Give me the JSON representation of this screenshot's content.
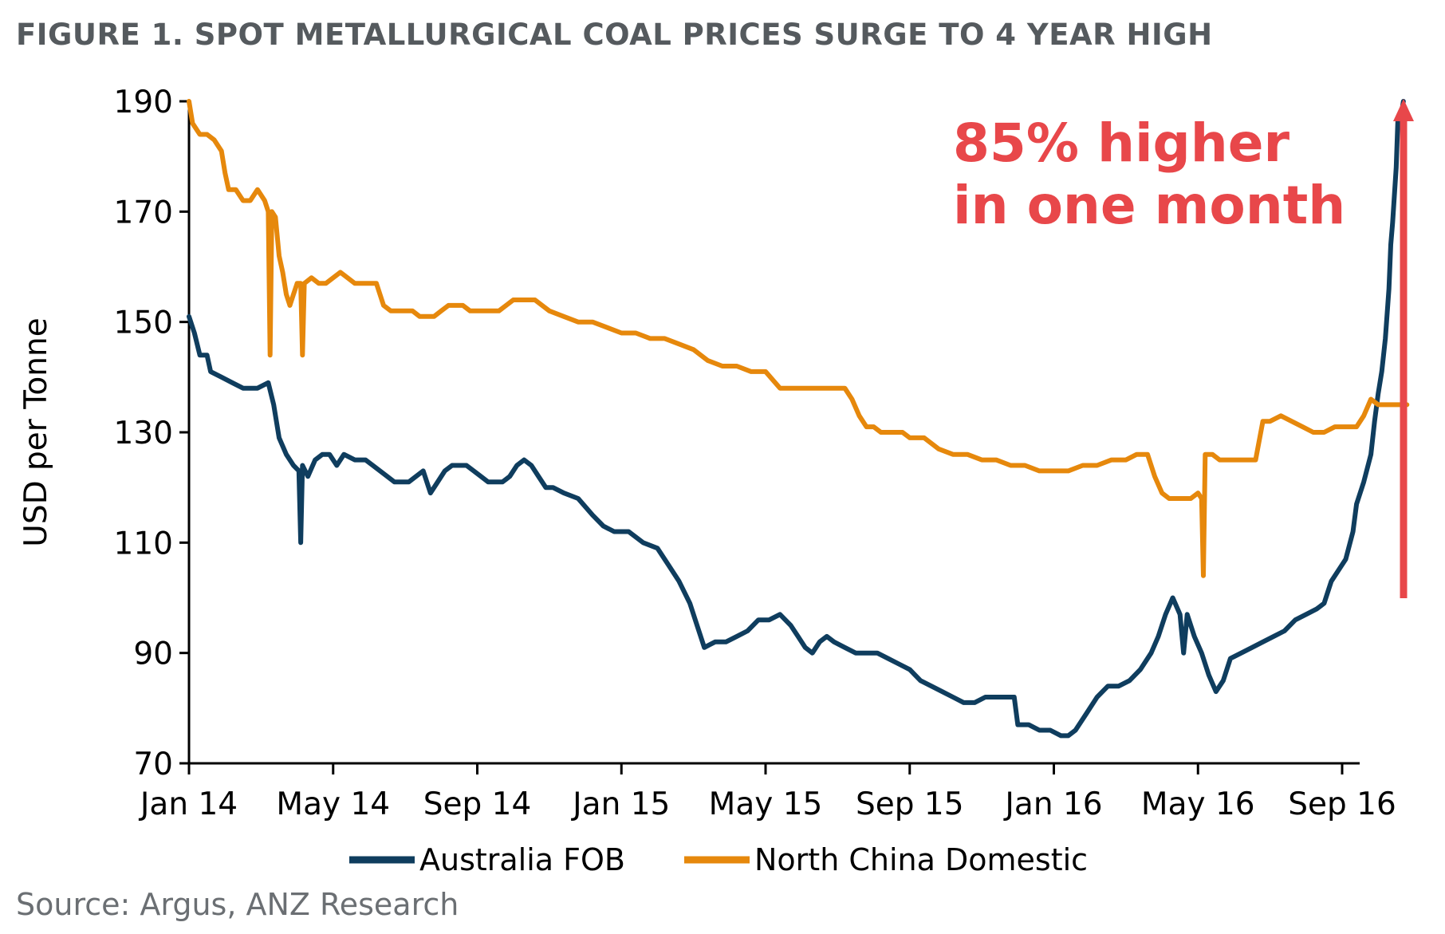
{
  "header": {
    "title": "FIGURE 1. SPOT METALLURGICAL COAL PRICES SURGE TO 4 YEAR HIGH"
  },
  "footer": {
    "source": "Source: Argus, ANZ Research"
  },
  "annotation": {
    "line1": "85% higher",
    "line2": "in one month",
    "color": "#e8474a"
  },
  "chart_data": {
    "type": "line",
    "title": "FIGURE 1. SPOT METALLURGICAL COAL PRICES SURGE TO 4 YEAR HIGH",
    "xlabel": "",
    "ylabel": "USD per Tonne",
    "ylim": [
      70,
      190
    ],
    "yticks": [
      70,
      90,
      110,
      130,
      150,
      170,
      190
    ],
    "xticks": [
      "Jan 14",
      "May 14",
      "Sep 14",
      "Jan 15",
      "May 15",
      "Sep 15",
      "Jan 16",
      "May 16",
      "Sep 16"
    ],
    "x_unit": "months since Jan 2014",
    "grid": false,
    "legend": "bottom",
    "series": [
      {
        "name": "Australia FOB",
        "color": "#0f3d5e",
        "points": [
          [
            0,
            151
          ],
          [
            0.15,
            148
          ],
          [
            0.3,
            144
          ],
          [
            0.5,
            144
          ],
          [
            0.6,
            141
          ],
          [
            0.9,
            140
          ],
          [
            1.2,
            139
          ],
          [
            1.5,
            138
          ],
          [
            1.9,
            138
          ],
          [
            2.2,
            139
          ],
          [
            2.35,
            135
          ],
          [
            2.5,
            129
          ],
          [
            2.7,
            126
          ],
          [
            2.9,
            124
          ],
          [
            3.05,
            123
          ],
          [
            3.1,
            110
          ],
          [
            3.15,
            124
          ],
          [
            3.3,
            122
          ],
          [
            3.5,
            125
          ],
          [
            3.7,
            126
          ],
          [
            3.9,
            126
          ],
          [
            4.1,
            124
          ],
          [
            4.3,
            126
          ],
          [
            4.6,
            125
          ],
          [
            4.9,
            125
          ],
          [
            5.1,
            124
          ],
          [
            5.3,
            123
          ],
          [
            5.5,
            122
          ],
          [
            5.7,
            121
          ],
          [
            5.9,
            121
          ],
          [
            6.1,
            121
          ],
          [
            6.3,
            122
          ],
          [
            6.5,
            123
          ],
          [
            6.7,
            119
          ],
          [
            6.9,
            121
          ],
          [
            7.1,
            123
          ],
          [
            7.3,
            124
          ],
          [
            7.5,
            124
          ],
          [
            7.7,
            124
          ],
          [
            7.9,
            123
          ],
          [
            8.1,
            122
          ],
          [
            8.3,
            121
          ],
          [
            8.5,
            121
          ],
          [
            8.7,
            121
          ],
          [
            8.9,
            122
          ],
          [
            9.1,
            124
          ],
          [
            9.3,
            125
          ],
          [
            9.5,
            124
          ],
          [
            9.7,
            122
          ],
          [
            9.9,
            120
          ],
          [
            10.1,
            120
          ],
          [
            10.4,
            119
          ],
          [
            10.8,
            118
          ],
          [
            11.2,
            115
          ],
          [
            11.5,
            113
          ],
          [
            11.8,
            112
          ],
          [
            12.2,
            112
          ],
          [
            12.6,
            110
          ],
          [
            13.0,
            109
          ],
          [
            13.3,
            106
          ],
          [
            13.6,
            103
          ],
          [
            13.9,
            99
          ],
          [
            14.1,
            95
          ],
          [
            14.3,
            91
          ],
          [
            14.6,
            92
          ],
          [
            14.9,
            92
          ],
          [
            15.2,
            93
          ],
          [
            15.5,
            94
          ],
          [
            15.8,
            96
          ],
          [
            16.1,
            96
          ],
          [
            16.4,
            97
          ],
          [
            16.7,
            95
          ],
          [
            16.9,
            93
          ],
          [
            17.1,
            91
          ],
          [
            17.3,
            90
          ],
          [
            17.5,
            92
          ],
          [
            17.7,
            93
          ],
          [
            17.9,
            92
          ],
          [
            18.2,
            91
          ],
          [
            18.5,
            90
          ],
          [
            18.8,
            90
          ],
          [
            19.1,
            90
          ],
          [
            19.4,
            89
          ],
          [
            19.7,
            88
          ],
          [
            20.0,
            87
          ],
          [
            20.3,
            85
          ],
          [
            20.6,
            84
          ],
          [
            20.9,
            83
          ],
          [
            21.2,
            82
          ],
          [
            21.5,
            81
          ],
          [
            21.8,
            81
          ],
          [
            22.1,
            82
          ],
          [
            22.4,
            82
          ],
          [
            22.7,
            82
          ],
          [
            22.9,
            82
          ],
          [
            23.0,
            77
          ],
          [
            23.3,
            77
          ],
          [
            23.6,
            76
          ],
          [
            23.9,
            76
          ],
          [
            24.2,
            75
          ],
          [
            24.4,
            75
          ],
          [
            24.6,
            76
          ],
          [
            24.9,
            79
          ],
          [
            25.2,
            82
          ],
          [
            25.5,
            84
          ],
          [
            25.8,
            84
          ],
          [
            26.1,
            85
          ],
          [
            26.4,
            87
          ],
          [
            26.7,
            90
          ],
          [
            26.9,
            93
          ],
          [
            27.1,
            97
          ],
          [
            27.3,
            100
          ],
          [
            27.5,
            97
          ],
          [
            27.6,
            90
          ],
          [
            27.7,
            97
          ],
          [
            27.9,
            93
          ],
          [
            28.1,
            90
          ],
          [
            28.3,
            86
          ],
          [
            28.5,
            83
          ],
          [
            28.7,
            85
          ],
          [
            28.9,
            89
          ],
          [
            29.2,
            90
          ],
          [
            29.5,
            91
          ],
          [
            29.8,
            92
          ],
          [
            30.1,
            93
          ],
          [
            30.4,
            94
          ],
          [
            30.7,
            96
          ],
          [
            31.0,
            97
          ],
          [
            31.3,
            98
          ],
          [
            31.5,
            99
          ],
          [
            31.6,
            101
          ],
          [
            31.7,
            103
          ],
          [
            31.9,
            105
          ],
          [
            32.1,
            107
          ],
          [
            32.3,
            112
          ],
          [
            32.4,
            117
          ],
          [
            32.6,
            121
          ],
          [
            32.8,
            126
          ],
          [
            32.9,
            132
          ],
          [
            33.0,
            137
          ],
          [
            33.1,
            141
          ],
          [
            33.2,
            147
          ],
          [
            33.3,
            156
          ],
          [
            33.35,
            164
          ],
          [
            33.4,
            168
          ],
          [
            33.5,
            178
          ],
          [
            33.55,
            187
          ],
          [
            33.65,
            188
          ],
          [
            33.7,
            190
          ]
        ]
      },
      {
        "name": "North China Domestic",
        "color": "#e6880c",
        "points": [
          [
            0,
            190
          ],
          [
            0.1,
            186
          ],
          [
            0.3,
            184
          ],
          [
            0.5,
            184
          ],
          [
            0.7,
            183
          ],
          [
            0.9,
            181
          ],
          [
            1.0,
            177
          ],
          [
            1.1,
            174
          ],
          [
            1.3,
            174
          ],
          [
            1.5,
            172
          ],
          [
            1.7,
            172
          ],
          [
            1.9,
            174
          ],
          [
            2.1,
            172
          ],
          [
            2.2,
            170
          ],
          [
            2.25,
            144
          ],
          [
            2.3,
            170
          ],
          [
            2.4,
            169
          ],
          [
            2.5,
            162
          ],
          [
            2.6,
            159
          ],
          [
            2.7,
            155
          ],
          [
            2.8,
            153
          ],
          [
            2.9,
            155
          ],
          [
            3.0,
            157
          ],
          [
            3.1,
            157
          ],
          [
            3.15,
            144
          ],
          [
            3.2,
            157
          ],
          [
            3.4,
            158
          ],
          [
            3.6,
            157
          ],
          [
            3.8,
            157
          ],
          [
            4.0,
            158
          ],
          [
            4.2,
            159
          ],
          [
            4.4,
            158
          ],
          [
            4.6,
            157
          ],
          [
            4.8,
            157
          ],
          [
            5.0,
            157
          ],
          [
            5.2,
            157
          ],
          [
            5.4,
            153
          ],
          [
            5.6,
            152
          ],
          [
            5.8,
            152
          ],
          [
            6.0,
            152
          ],
          [
            6.2,
            152
          ],
          [
            6.4,
            151
          ],
          [
            6.6,
            151
          ],
          [
            6.8,
            151
          ],
          [
            7.0,
            152
          ],
          [
            7.2,
            153
          ],
          [
            7.4,
            153
          ],
          [
            7.6,
            153
          ],
          [
            7.8,
            152
          ],
          [
            8.0,
            152
          ],
          [
            8.2,
            152
          ],
          [
            8.4,
            152
          ],
          [
            8.6,
            152
          ],
          [
            8.8,
            153
          ],
          [
            9.0,
            154
          ],
          [
            9.2,
            154
          ],
          [
            9.4,
            154
          ],
          [
            9.6,
            154
          ],
          [
            9.8,
            153
          ],
          [
            10.0,
            152
          ],
          [
            10.4,
            151
          ],
          [
            10.8,
            150
          ],
          [
            11.2,
            150
          ],
          [
            11.6,
            149
          ],
          [
            12.0,
            148
          ],
          [
            12.4,
            148
          ],
          [
            12.8,
            147
          ],
          [
            13.2,
            147
          ],
          [
            13.6,
            146
          ],
          [
            14.0,
            145
          ],
          [
            14.4,
            143
          ],
          [
            14.8,
            142
          ],
          [
            15.2,
            142
          ],
          [
            15.6,
            141
          ],
          [
            16.0,
            141
          ],
          [
            16.4,
            138
          ],
          [
            16.8,
            138
          ],
          [
            17.2,
            138
          ],
          [
            17.6,
            138
          ],
          [
            18.0,
            138
          ],
          [
            18.2,
            138
          ],
          [
            18.4,
            136
          ],
          [
            18.6,
            133
          ],
          [
            18.8,
            131
          ],
          [
            19.0,
            131
          ],
          [
            19.2,
            130
          ],
          [
            19.4,
            130
          ],
          [
            19.6,
            130
          ],
          [
            19.8,
            130
          ],
          [
            20.0,
            129
          ],
          [
            20.4,
            129
          ],
          [
            20.8,
            127
          ],
          [
            21.2,
            126
          ],
          [
            21.6,
            126
          ],
          [
            22.0,
            125
          ],
          [
            22.4,
            125
          ],
          [
            22.8,
            124
          ],
          [
            23.2,
            124
          ],
          [
            23.6,
            123
          ],
          [
            24.0,
            123
          ],
          [
            24.4,
            123
          ],
          [
            24.8,
            124
          ],
          [
            25.2,
            124
          ],
          [
            25.6,
            125
          ],
          [
            26.0,
            125
          ],
          [
            26.3,
            126
          ],
          [
            26.6,
            126
          ],
          [
            26.8,
            122
          ],
          [
            27.0,
            119
          ],
          [
            27.2,
            118
          ],
          [
            27.4,
            118
          ],
          [
            27.6,
            118
          ],
          [
            27.8,
            118
          ],
          [
            28.0,
            119
          ],
          [
            28.1,
            118
          ],
          [
            28.15,
            104
          ],
          [
            28.2,
            126
          ],
          [
            28.4,
            126
          ],
          [
            28.6,
            125
          ],
          [
            28.8,
            125
          ],
          [
            29.0,
            125
          ],
          [
            29.2,
            125
          ],
          [
            29.4,
            125
          ],
          [
            29.6,
            125
          ],
          [
            29.8,
            132
          ],
          [
            30.0,
            132
          ],
          [
            30.3,
            133
          ],
          [
            30.6,
            132
          ],
          [
            30.9,
            131
          ],
          [
            31.2,
            130
          ],
          [
            31.5,
            130
          ],
          [
            31.8,
            131
          ],
          [
            32.1,
            131
          ],
          [
            32.4,
            131
          ],
          [
            32.6,
            133
          ],
          [
            32.8,
            136
          ],
          [
            33.0,
            135
          ],
          [
            33.2,
            135
          ],
          [
            33.4,
            135
          ],
          [
            33.6,
            135
          ],
          [
            33.8,
            135
          ]
        ]
      }
    ]
  }
}
